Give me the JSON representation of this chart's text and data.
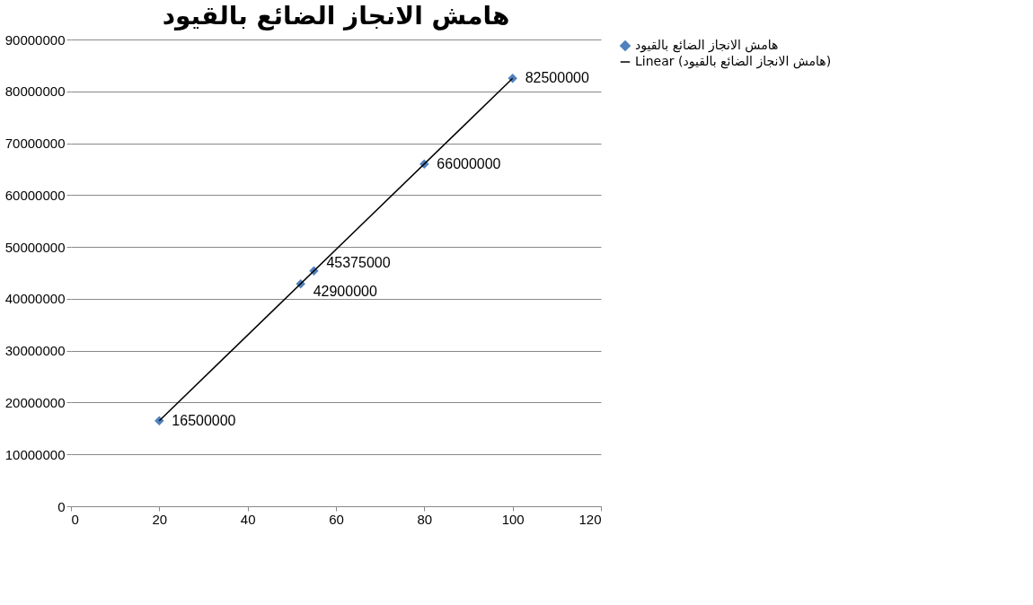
{
  "chart_data": {
    "type": "scatter",
    "title": "هامش الانجاز الضائع بالقيود",
    "series": [
      {
        "name": "هامش الانجاز الضائع بالقيود",
        "color": "#4f81bd",
        "marker": "diamond",
        "x": [
          20,
          52,
          55,
          80,
          100
        ],
        "values": [
          16500000,
          42900000,
          45375000,
          66000000,
          82500000
        ],
        "value_labels": [
          "16500000",
          "42900000",
          "45375000",
          "66000000",
          "82500000"
        ]
      },
      {
        "name": "Linear (هامش الانجاز الضائع بالقيود)",
        "type": "line",
        "color": "#000000",
        "marker": "none",
        "line_style": "solid",
        "x": [
          20,
          100
        ],
        "values": [
          16500000,
          82500000
        ]
      }
    ],
    "grid": "y",
    "legend": "right",
    "xlim": [
      0,
      120
    ],
    "xticks": [
      0,
      20,
      40,
      60,
      80,
      100,
      120
    ],
    "ylim": [
      0,
      90000000
    ],
    "yticks": [
      0,
      10000000,
      20000000,
      30000000,
      40000000,
      50000000,
      60000000,
      70000000,
      80000000,
      90000000
    ]
  }
}
